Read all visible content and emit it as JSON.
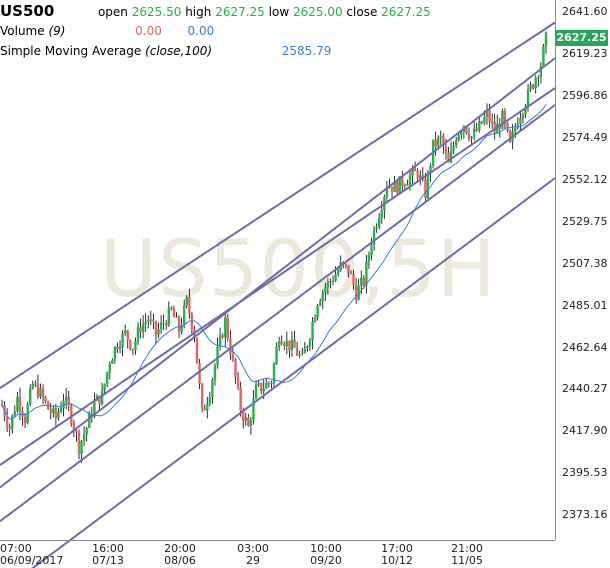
{
  "header": {
    "symbol": "US500",
    "open_label": "open",
    "open_value": "2625.50",
    "high_label": "high",
    "high_value": "2627.25",
    "low_label": "low",
    "low_value": "2625.00",
    "close_label": "close",
    "close_value": "2627.25",
    "volume_label": "Volume",
    "volume_param": "(9)",
    "volume_value_1": "0.00",
    "volume_value_2": "0.00",
    "sma_label": "Simple Moving Average",
    "sma_param": "(close,100)",
    "sma_value": "2585.79"
  },
  "watermark": "US500,5H",
  "price_tag": "2627.25",
  "colors": {
    "up": "#26b24a",
    "down": "#e06666",
    "sma": "#3b7dd8",
    "trendline": "#6f6aa8",
    "price_tag": "#26a65b"
  },
  "chart_data": {
    "type": "candlestick",
    "ylim": [
      2360,
      2641.6
    ],
    "y_ticks": [
      "2641.60",
      "2619.23",
      "2596.86",
      "2574.49",
      "2552.12",
      "2529.75",
      "2507.38",
      "2485.01",
      "2462.64",
      "2440.27",
      "2417.90",
      "2395.53",
      "2373.16"
    ],
    "y_tick_values": [
      2641.6,
      2619.23,
      2596.86,
      2574.49,
      2552.12,
      2529.75,
      2507.38,
      2485.01,
      2462.64,
      2440.27,
      2417.9,
      2395.53,
      2373.16
    ],
    "x_ticks": [
      {
        "time": "07:00",
        "date": "06/09/2017"
      },
      {
        "time": "16:00",
        "date": "07/13"
      },
      {
        "time": "20:00",
        "date": "08/06"
      },
      {
        "time": "03:00",
        "date": "29"
      },
      {
        "time": "10:00",
        "date": "09/20"
      },
      {
        "time": "17:00",
        "date": "10/12"
      },
      {
        "time": "21:00",
        "date": "11/05"
      }
    ],
    "price_path": [
      [
        0,
        2432
      ],
      [
        3,
        2420
      ],
      [
        6,
        2436
      ],
      [
        9,
        2425
      ],
      [
        12,
        2443
      ],
      [
        15,
        2438
      ],
      [
        18,
        2430
      ],
      [
        21,
        2425
      ],
      [
        24,
        2436
      ],
      [
        27,
        2426
      ],
      [
        30,
        2410
      ],
      [
        33,
        2420
      ],
      [
        36,
        2433
      ],
      [
        39,
        2437
      ],
      [
        42,
        2456
      ],
      [
        45,
        2465
      ],
      [
        48,
        2470
      ],
      [
        51,
        2463
      ],
      [
        54,
        2474
      ],
      [
        57,
        2478
      ],
      [
        60,
        2470
      ],
      [
        63,
        2476
      ],
      [
        66,
        2482
      ],
      [
        69,
        2472
      ],
      [
        72,
        2487
      ],
      [
        75,
        2470
      ],
      [
        78,
        2427
      ],
      [
        81,
        2440
      ],
      [
        84,
        2460
      ],
      [
        87,
        2477
      ],
      [
        90,
        2454
      ],
      [
        93,
        2430
      ],
      [
        96,
        2420
      ],
      [
        99,
        2440
      ],
      [
        102,
        2442
      ],
      [
        105,
        2445
      ],
      [
        108,
        2470
      ],
      [
        111,
        2465
      ],
      [
        114,
        2462
      ],
      [
        117,
        2456
      ],
      [
        120,
        2470
      ],
      [
        123,
        2488
      ],
      [
        126,
        2495
      ],
      [
        129,
        2500
      ],
      [
        132,
        2506
      ],
      [
        135,
        2504
      ],
      [
        138,
        2492
      ],
      [
        141,
        2498
      ],
      [
        144,
        2520
      ],
      [
        147,
        2535
      ],
      [
        150,
        2550
      ],
      [
        153,
        2548
      ],
      [
        156,
        2551
      ],
      [
        159,
        2554
      ],
      [
        162,
        2556
      ],
      [
        165,
        2545
      ],
      [
        168,
        2570
      ],
      [
        171,
        2574
      ],
      [
        174,
        2560
      ],
      [
        177,
        2576
      ],
      [
        180,
        2582
      ],
      [
        183,
        2575
      ],
      [
        186,
        2580
      ],
      [
        189,
        2587
      ],
      [
        192,
        2578
      ],
      [
        195,
        2585
      ],
      [
        198,
        2570
      ],
      [
        201,
        2585
      ],
      [
        204,
        2594
      ],
      [
        207,
        2604
      ],
      [
        210,
        2614
      ],
      [
        212,
        2627
      ]
    ],
    "trend_lines": [
      {
        "from": [
          0,
          2441
        ],
        "to": [
          212,
          2636
        ]
      },
      {
        "from": [
          0,
          2388
        ],
        "to": [
          212,
          2617
        ]
      },
      {
        "from": [
          0,
          2370
        ],
        "to": [
          212,
          2592
        ]
      },
      {
        "from": [
          0,
          2332
        ],
        "to": [
          212,
          2553
        ]
      },
      {
        "from": [
          0,
          2400
        ],
        "to": [
          212,
          2601
        ]
      }
    ],
    "sma_series": "Simple Moving Average (close,100)",
    "volume_series": "Volume (9)"
  }
}
